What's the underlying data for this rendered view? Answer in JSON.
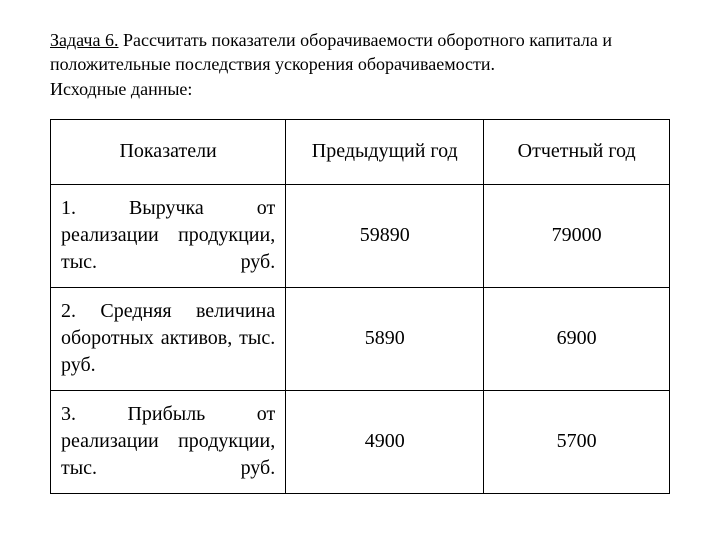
{
  "heading": {
    "title_underline": "Задача 6.",
    "title_rest": " Рассчитать показатели оборачиваемости оборотного капитала и положительные последствия ускорения оборачиваемости.",
    "subtitle": "Исходные данные:"
  },
  "table": {
    "headers": {
      "c1": "Показатели",
      "c2": "Предыдущий год",
      "c3": "Отчетный год"
    },
    "rows": [
      {
        "label": "1. Выручка от реализации продукции, тыс. руб.",
        "prev": "59890",
        "curr": "79000"
      },
      {
        "label": "2. Средняя величина оборотных активов, тыс. руб.",
        "prev": "5890",
        "curr": "6900"
      },
      {
        "label": "3. Прибыль от реализации продукции, тыс. руб.",
        "prev": "4900",
        "curr": "5700"
      }
    ]
  }
}
